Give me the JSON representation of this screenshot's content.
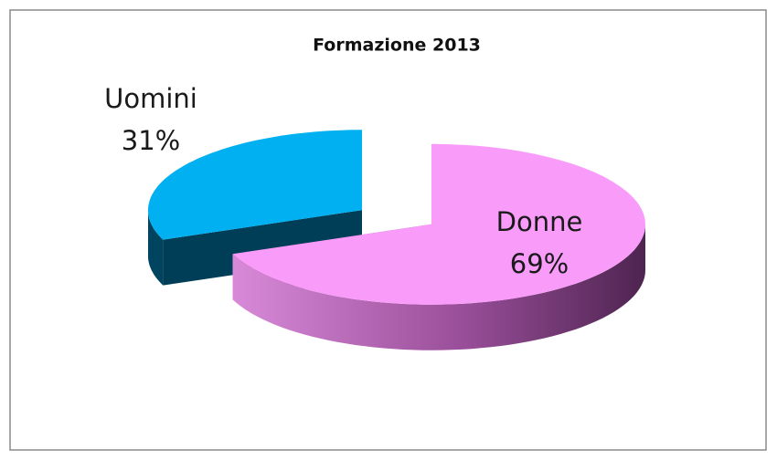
{
  "chart_data": {
    "type": "pie3d",
    "title": "Formazione 2013",
    "categories": [
      "Donne",
      "Uomini"
    ],
    "values": [
      69,
      31
    ],
    "value_labels": [
      "69%",
      "31%"
    ],
    "colors": [
      "#f99cf9",
      "#00b0f0"
    ]
  }
}
